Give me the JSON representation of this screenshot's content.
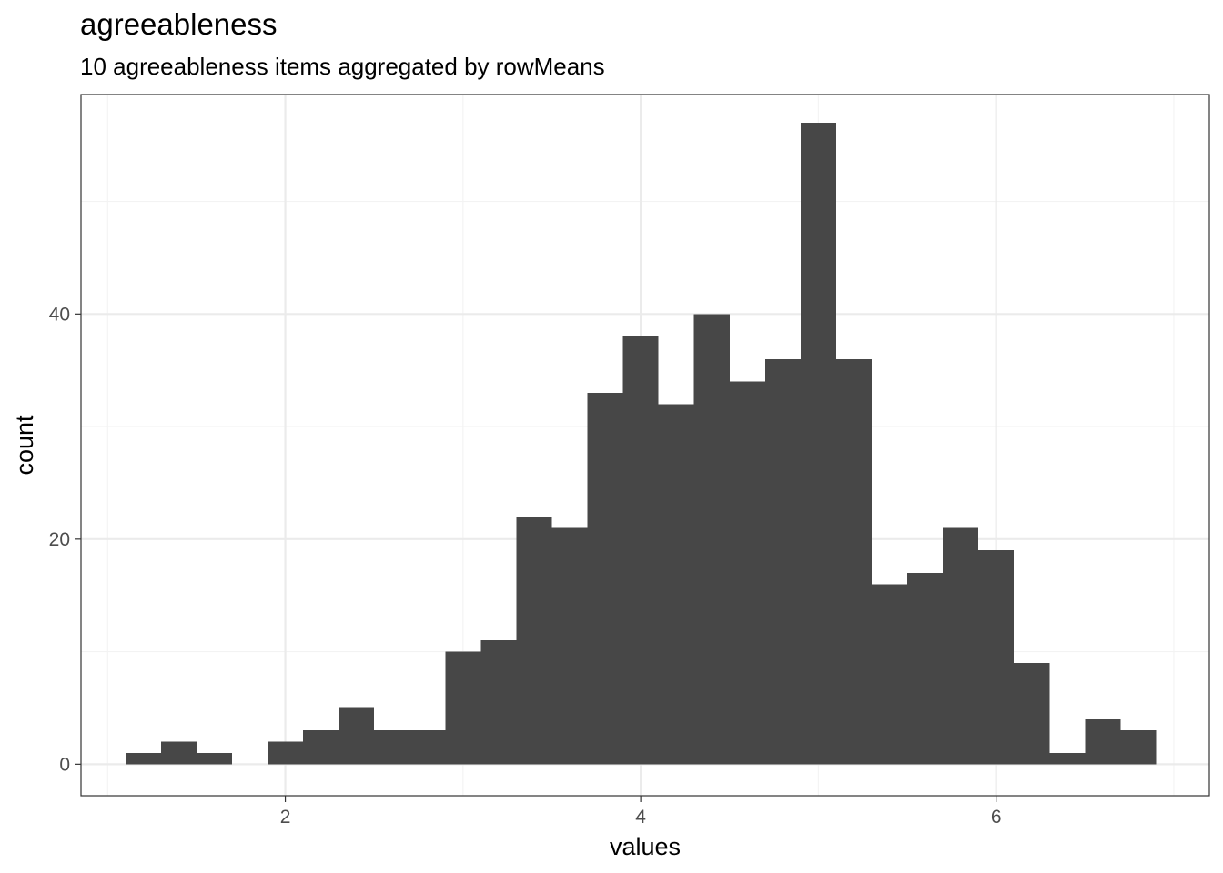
{
  "chart_data": {
    "type": "bar",
    "subtype": "histogram",
    "title": "agreeableness",
    "subtitle": "10 agreeableness items aggregated by rowMeans",
    "xlabel": "values",
    "ylabel": "count",
    "xlim": [
      0.85,
      7.2
    ],
    "ylim": [
      -2.8,
      59.5
    ],
    "x_ticks": [
      2,
      4,
      6
    ],
    "x_tick_labels": [
      "2",
      "4",
      "6"
    ],
    "y_ticks": [
      0,
      20,
      40
    ],
    "y_tick_labels": [
      "0",
      "20",
      "40"
    ],
    "x_minor_gridlines": [
      1,
      3,
      5,
      7
    ],
    "y_minor_gridlines": [
      10,
      30,
      50
    ],
    "grid": true,
    "legend": "none",
    "bin_width": 0.2,
    "bins": [
      {
        "start": 1.1,
        "end": 1.3,
        "count": 1
      },
      {
        "start": 1.3,
        "end": 1.5,
        "count": 2
      },
      {
        "start": 1.5,
        "end": 1.7,
        "count": 1
      },
      {
        "start": 1.7,
        "end": 1.9,
        "count": 0
      },
      {
        "start": 1.9,
        "end": 2.1,
        "count": 2
      },
      {
        "start": 2.1,
        "end": 2.3,
        "count": 3
      },
      {
        "start": 2.3,
        "end": 2.5,
        "count": 5
      },
      {
        "start": 2.5,
        "end": 2.7,
        "count": 3
      },
      {
        "start": 2.7,
        "end": 2.9,
        "count": 3
      },
      {
        "start": 2.9,
        "end": 3.1,
        "count": 10
      },
      {
        "start": 3.1,
        "end": 3.3,
        "count": 11
      },
      {
        "start": 3.3,
        "end": 3.5,
        "count": 22
      },
      {
        "start": 3.5,
        "end": 3.7,
        "count": 21
      },
      {
        "start": 3.7,
        "end": 3.9,
        "count": 33
      },
      {
        "start": 3.9,
        "end": 4.1,
        "count": 38
      },
      {
        "start": 4.1,
        "end": 4.3,
        "count": 32
      },
      {
        "start": 4.3,
        "end": 4.5,
        "count": 40
      },
      {
        "start": 4.5,
        "end": 4.7,
        "count": 34
      },
      {
        "start": 4.7,
        "end": 4.9,
        "count": 36
      },
      {
        "start": 4.9,
        "end": 5.1,
        "count": 57
      },
      {
        "start": 5.1,
        "end": 5.3,
        "count": 36
      },
      {
        "start": 5.3,
        "end": 5.5,
        "count": 16
      },
      {
        "start": 5.5,
        "end": 5.7,
        "count": 17
      },
      {
        "start": 5.7,
        "end": 5.9,
        "count": 21
      },
      {
        "start": 5.9,
        "end": 6.1,
        "count": 19
      },
      {
        "start": 6.1,
        "end": 6.3,
        "count": 9
      },
      {
        "start": 6.3,
        "end": 6.5,
        "count": 1
      },
      {
        "start": 6.5,
        "end": 6.7,
        "count": 4
      },
      {
        "start": 6.7,
        "end": 6.9,
        "count": 3
      }
    ],
    "colors": {
      "bar": "#474747",
      "panel_border": "#333333",
      "grid_major": "#ebebeb",
      "grid_minor": "#f3f3f3",
      "tick_text": "#4d4d4d"
    }
  }
}
